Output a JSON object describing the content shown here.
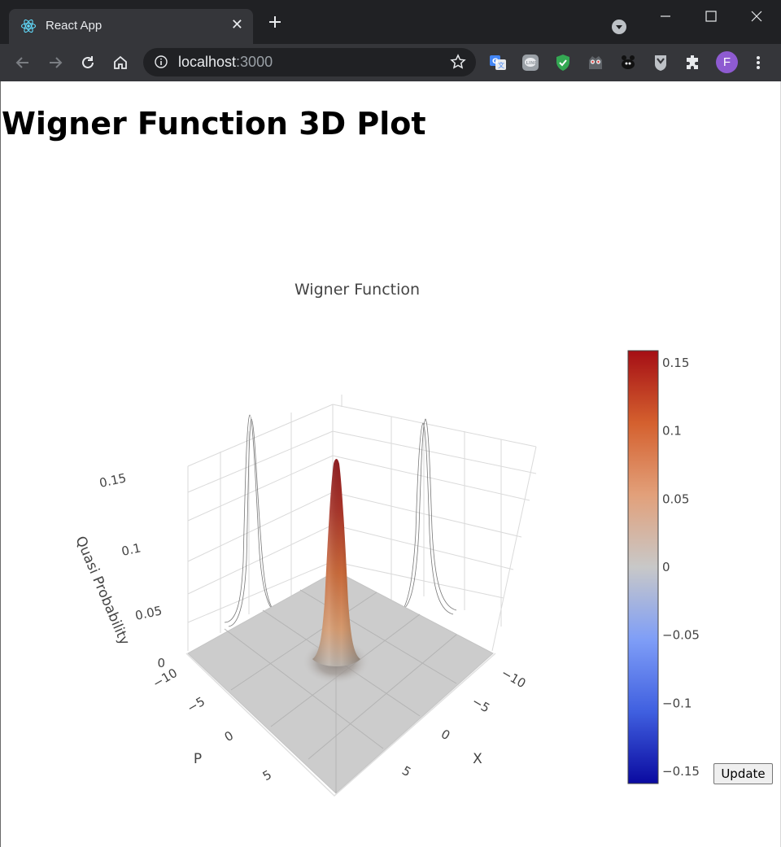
{
  "browser": {
    "tab_title": "React App",
    "url_host": "localhost",
    "url_port": ":3000",
    "avatar_letter": "F"
  },
  "page": {
    "heading": "Wigner Function 3D Plot",
    "update_button": "Update"
  },
  "chart_data": {
    "type": "surface3d",
    "title": "Wigner Function",
    "xlabel": "X",
    "ylabel": "P",
    "zlabel": "Quasi Probability",
    "x_ticks": [
      "−10",
      "−5",
      "0",
      "5"
    ],
    "p_ticks": [
      "−10",
      "−5",
      "0",
      "5"
    ],
    "z_ticks": [
      "0",
      "0.05",
      "0.1",
      "0.15"
    ],
    "surface": {
      "shape": "gaussian",
      "center_x": 0,
      "center_p": 0,
      "peak": 0.159,
      "base": 0,
      "x_range": [
        -10,
        10
      ],
      "p_range": [
        -10,
        10
      ]
    },
    "projections": [
      "x-wall",
      "p-wall"
    ],
    "colorscale": {
      "name": "coolwarm",
      "min": -0.159,
      "max": 0.159,
      "tick_labels": [
        "0.15",
        "0.1",
        "0.05",
        "0",
        "−0.05",
        "−0.1",
        "−0.15"
      ],
      "tick_values": [
        0.15,
        0.1,
        0.05,
        0,
        -0.05,
        -0.1,
        -0.15
      ],
      "colors": [
        "#0a0aa0",
        "#4060e0",
        "#7f9ef7",
        "#c8c8c8",
        "#e2a07a",
        "#d4602e",
        "#a50f15"
      ]
    },
    "floor_color": "#cccccc",
    "grid": true
  }
}
